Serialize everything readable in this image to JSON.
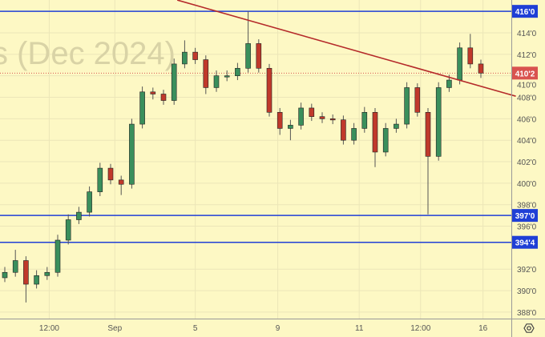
{
  "chart_data": {
    "type": "candlestick",
    "watermark": "s (Dec 2024)",
    "y_ticks": [
      "414'0",
      "412'0",
      "410'0",
      "408'0",
      "406'0",
      "404'0",
      "402'0",
      "400'0",
      "398'0",
      "396'0",
      "392'0",
      "390'0",
      "388'0"
    ],
    "y_tick_values": [
      414,
      412,
      410,
      408,
      406,
      404,
      402,
      400,
      398,
      396,
      392,
      390,
      388
    ],
    "ylim": [
      387.4,
      417.1
    ],
    "x_ticks": [
      "12:00",
      "Sep",
      "5",
      "9",
      "11",
      "12:00",
      "16"
    ],
    "x_tick_candle_index": [
      4.2,
      10.4,
      18,
      25.8,
      33.5,
      39.3,
      45.2
    ],
    "horizontal_levels": [
      {
        "value": 416.0,
        "label": "416'0",
        "color": "#1f3fd6"
      },
      {
        "value": 397.0,
        "label": "397'0",
        "color": "#1f3fd6"
      },
      {
        "value": 394.5,
        "label": "394'4",
        "color": "#1f3fd6"
      }
    ],
    "last_price": {
      "value": 410.25,
      "label": "410'2",
      "color": "#d9534f"
    },
    "trendline": {
      "start": {
        "candle_index": 16.3,
        "price": 417.05
      },
      "end": {
        "candle_index": 48.3,
        "price": 408.1
      },
      "color": "#b52a2a"
    },
    "up_color": "#3a8f5c",
    "down_color": "#c0392b",
    "candles": [
      [
        391.2,
        392.2,
        390.8,
        391.7
      ],
      [
        391.7,
        393.8,
        391.3,
        392.8
      ],
      [
        392.8,
        393.2,
        388.9,
        390.6
      ],
      [
        390.6,
        391.9,
        390.2,
        391.4
      ],
      [
        391.4,
        392.2,
        391.0,
        391.7
      ],
      [
        391.7,
        395.2,
        391.3,
        394.7
      ],
      [
        394.7,
        397.1,
        394.3,
        396.6
      ],
      [
        396.6,
        397.8,
        396.2,
        397.3
      ],
      [
        397.3,
        399.7,
        396.9,
        399.2
      ],
      [
        399.2,
        401.9,
        398.8,
        401.4
      ],
      [
        401.4,
        401.8,
        399.9,
        400.3
      ],
      [
        400.3,
        400.7,
        398.9,
        399.9
      ],
      [
        399.9,
        406.0,
        399.5,
        405.5
      ],
      [
        405.5,
        409.0,
        405.1,
        408.5
      ],
      [
        408.5,
        408.9,
        407.8,
        408.3
      ],
      [
        408.3,
        408.7,
        407.3,
        407.7
      ],
      [
        407.7,
        411.6,
        407.3,
        411.1
      ],
      [
        411.1,
        413.3,
        410.7,
        412.2
      ],
      [
        412.2,
        412.6,
        411.1,
        411.5
      ],
      [
        411.5,
        411.9,
        408.3,
        408.9
      ],
      [
        408.9,
        410.5,
        408.5,
        410.0
      ],
      [
        410.0,
        410.5,
        409.5,
        410.0
      ],
      [
        410.0,
        411.2,
        409.6,
        410.7
      ],
      [
        410.7,
        416.0,
        410.3,
        413.0
      ],
      [
        413.0,
        413.4,
        410.3,
        410.7
      ],
      [
        410.7,
        411.1,
        406.2,
        406.6
      ],
      [
        406.6,
        407.0,
        404.5,
        405.1
      ],
      [
        405.1,
        405.9,
        404.0,
        405.4
      ],
      [
        405.4,
        407.5,
        405.0,
        407.0
      ],
      [
        407.0,
        407.4,
        405.8,
        406.2
      ],
      [
        406.2,
        406.6,
        405.6,
        406.0
      ],
      [
        406.0,
        406.4,
        405.5,
        405.9
      ],
      [
        405.9,
        406.3,
        403.6,
        404.0
      ],
      [
        404.0,
        405.6,
        403.6,
        405.1
      ],
      [
        405.1,
        407.1,
        404.7,
        406.6
      ],
      [
        406.6,
        407.0,
        401.5,
        402.9
      ],
      [
        402.9,
        405.6,
        402.5,
        405.1
      ],
      [
        405.1,
        406.0,
        404.7,
        405.5
      ],
      [
        405.5,
        409.4,
        405.1,
        408.9
      ],
      [
        408.9,
        409.3,
        406.2,
        406.6
      ],
      [
        406.6,
        407.0,
        397.1,
        402.5
      ],
      [
        402.5,
        409.4,
        402.1,
        408.9
      ],
      [
        408.9,
        410.1,
        408.5,
        409.6
      ],
      [
        409.6,
        413.1,
        409.2,
        412.6
      ],
      [
        412.6,
        413.9,
        410.7,
        411.1
      ],
      [
        411.1,
        411.5,
        409.8,
        410.25
      ]
    ]
  },
  "settings_icon": "settings-gear-icon"
}
